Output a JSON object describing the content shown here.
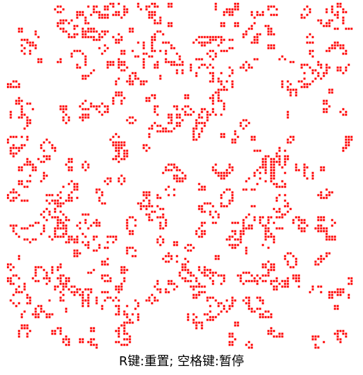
{
  "game": {
    "name": "game-of-life",
    "controls_hint": "R键:重置; 空格键:暂停",
    "cell_color": "#ff0000",
    "background_color": "#ffffff",
    "grid": {
      "cols": 125,
      "rows": 125,
      "live_fraction": 0.18
    },
    "state": "running"
  }
}
